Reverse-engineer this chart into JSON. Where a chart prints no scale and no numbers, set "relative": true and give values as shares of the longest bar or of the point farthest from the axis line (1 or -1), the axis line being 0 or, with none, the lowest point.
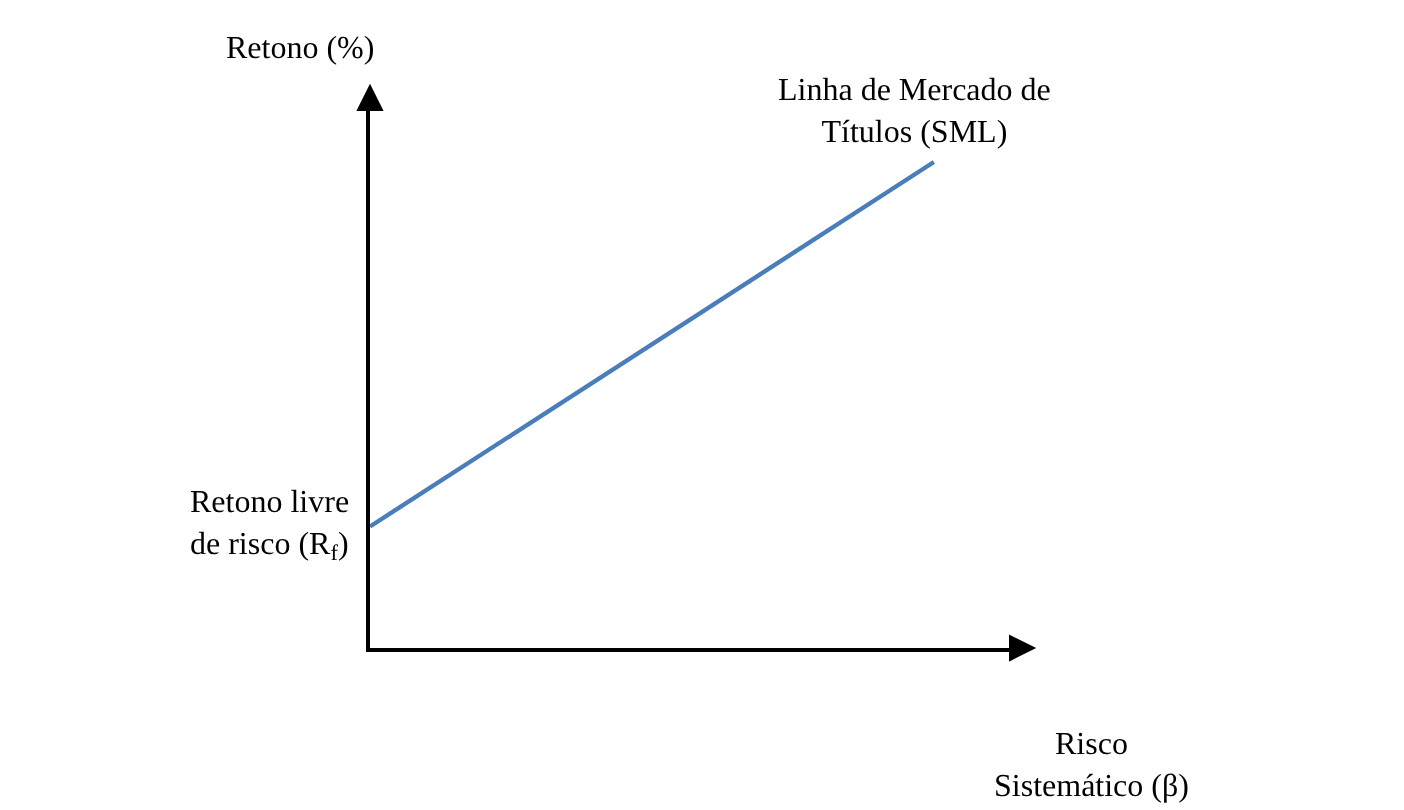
{
  "chart_data": {
    "type": "line",
    "relative": true,
    "ylabel": "Retono (%)",
    "xlabel": "Risco Sistemático (β)",
    "categories": [
      null,
      null
    ],
    "series": [
      {
        "name": "Linha de Mercado de Títulos (SML)",
        "color": "#4a7ebb",
        "values": [
          0.25,
          1
        ]
      }
    ],
    "annotations": [
      "Retono livre de risco (R$_{f}$)"
    ],
    "legend": false,
    "marker": "none",
    "line_style": "solid"
  }
}
